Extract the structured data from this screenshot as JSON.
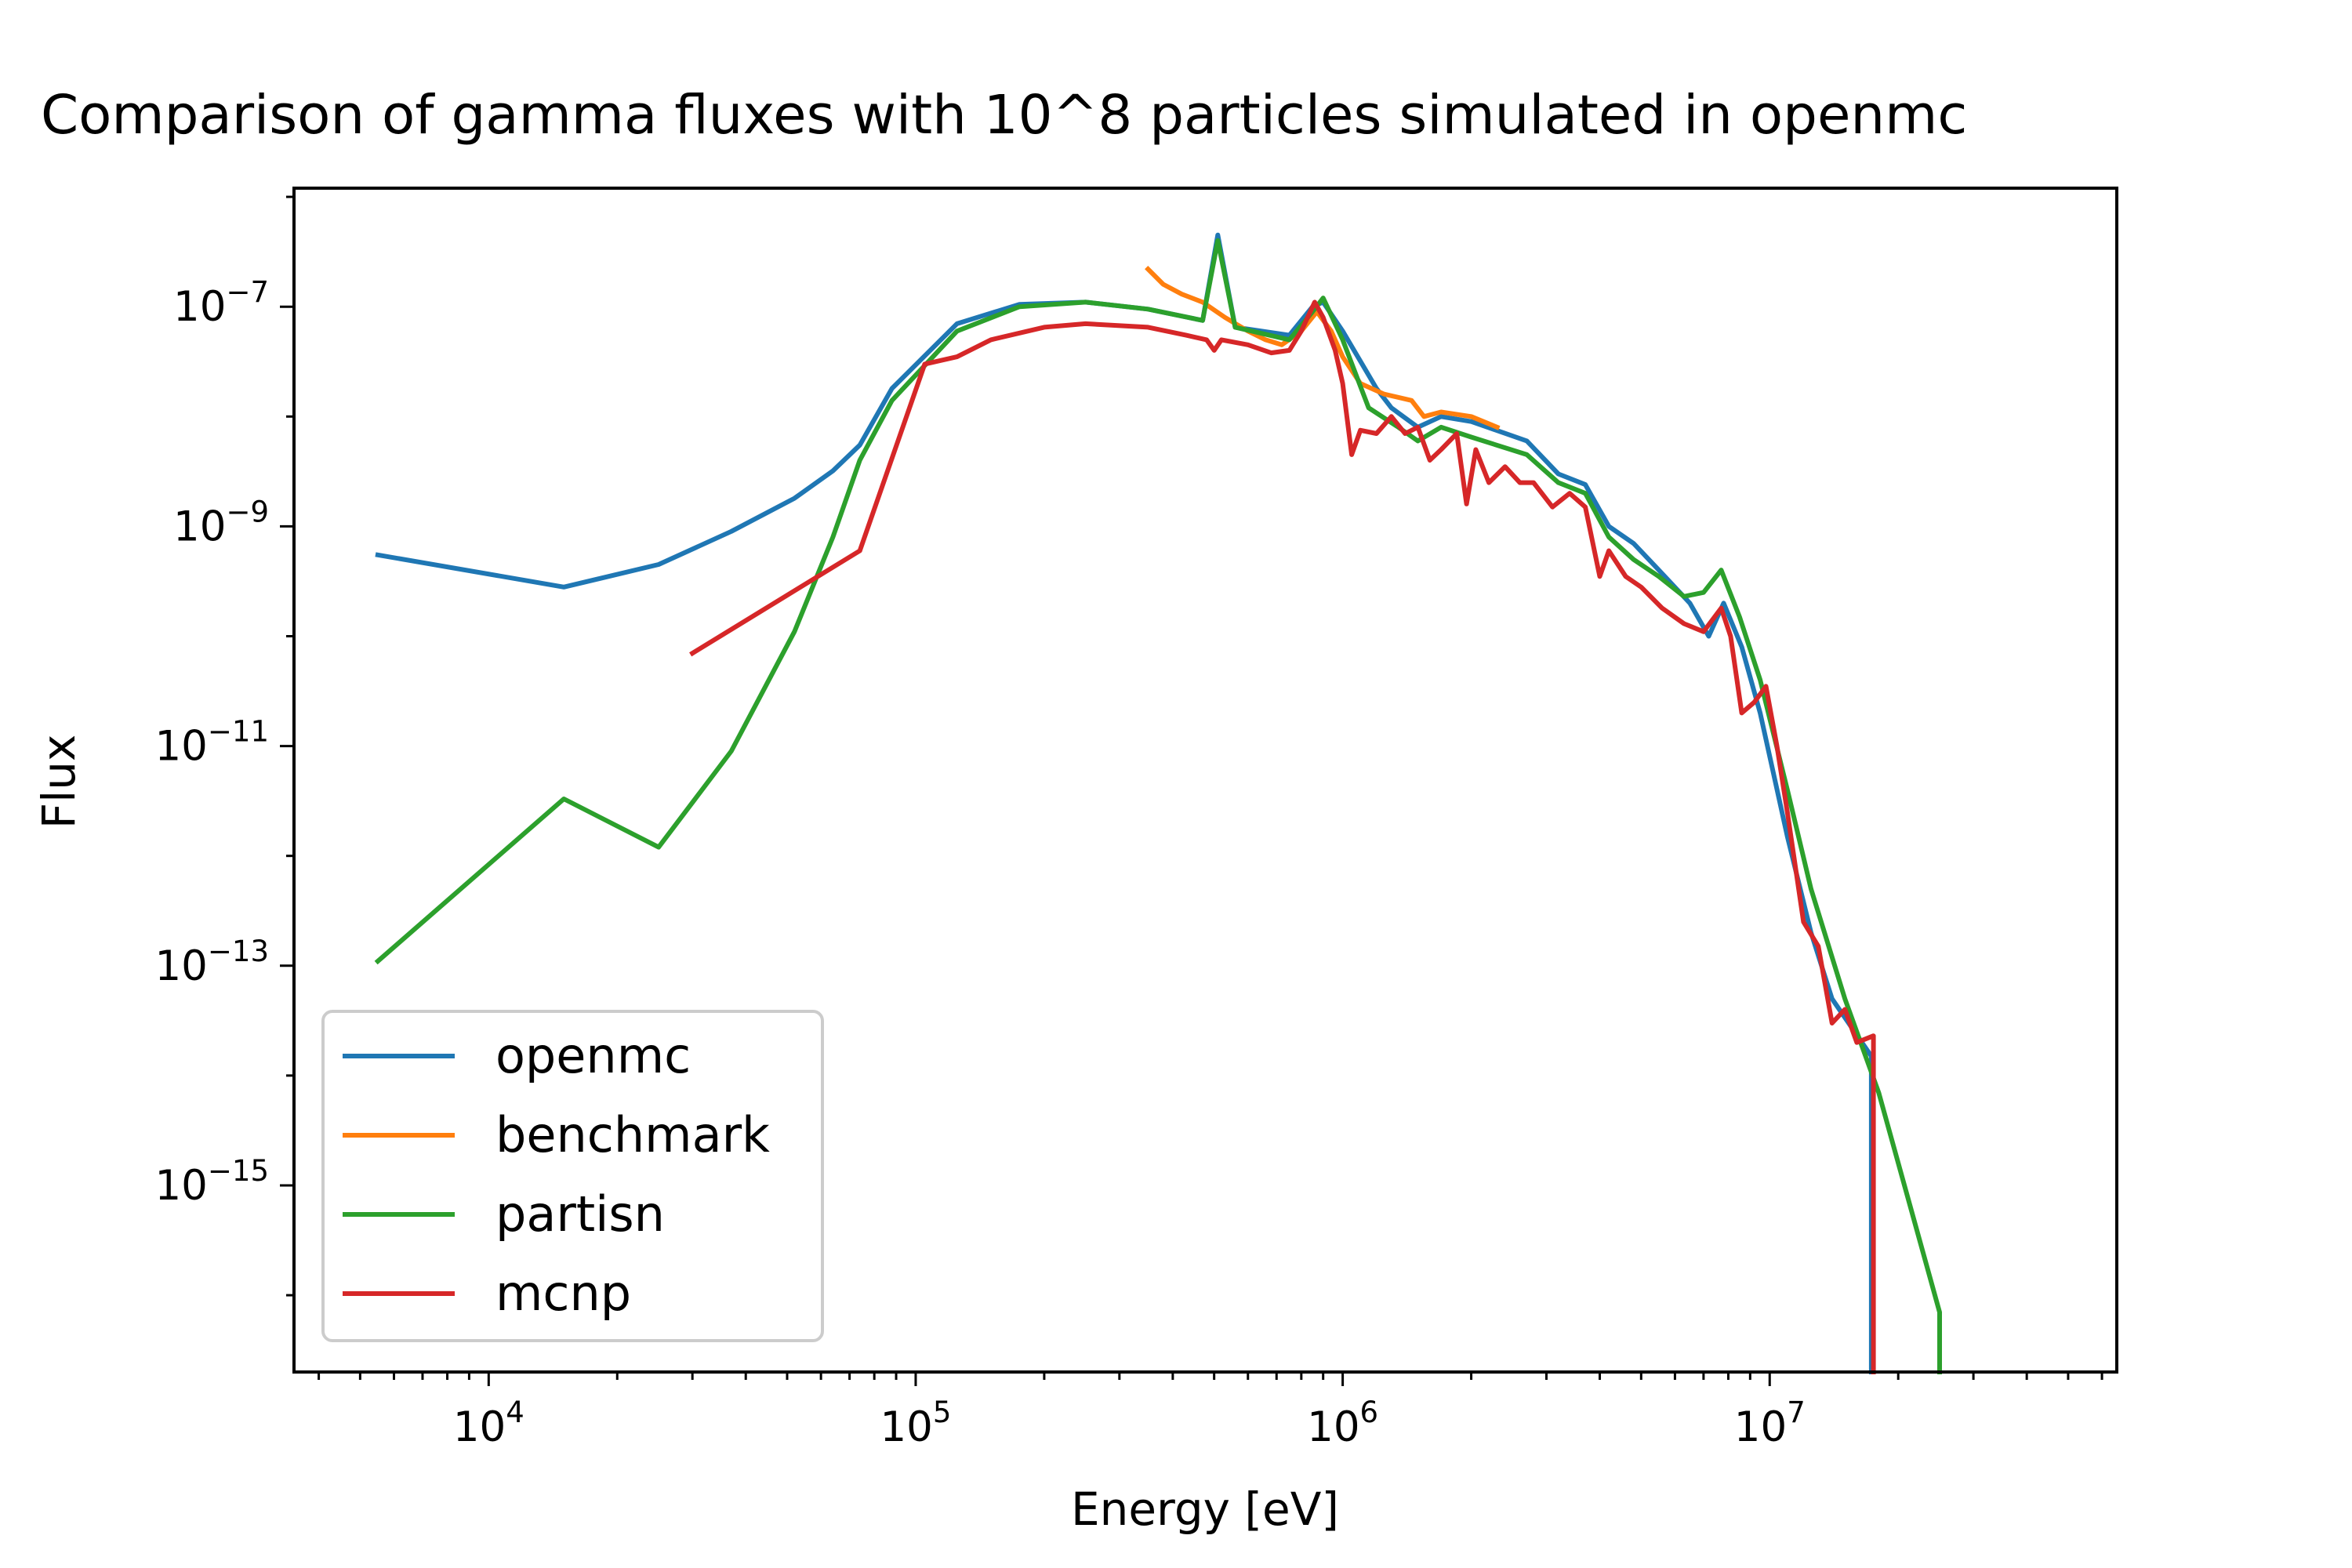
{
  "chart_data": {
    "type": "line",
    "title": "Comparison of gamma fluxes with 10^8 particles simulated in openmc",
    "xlabel": "Energy [eV]",
    "ylabel": "Flux",
    "xscale": "log",
    "yscale": "log",
    "xlim": [
      3500,
      65000000
    ],
    "ylim": [
      2e-17,
      1.2e-06
    ],
    "x_ticks": [
      {
        "value": 10000,
        "base": "10",
        "exp": "4"
      },
      {
        "value": 100000,
        "base": "10",
        "exp": "5"
      },
      {
        "value": 1000000,
        "base": "10",
        "exp": "6"
      },
      {
        "value": 10000000,
        "base": "10",
        "exp": "7"
      }
    ],
    "y_ticks": [
      {
        "value": 1e-07,
        "base": "10",
        "exp": "−7"
      },
      {
        "value": 1e-09,
        "base": "10",
        "exp": "−9"
      },
      {
        "value": 1e-11,
        "base": "10",
        "exp": "−11"
      },
      {
        "value": 1e-13,
        "base": "10",
        "exp": "−13"
      },
      {
        "value": 1e-15,
        "base": "10",
        "exp": "−15"
      }
    ],
    "grid": false,
    "legend_position": "lower-left",
    "series": [
      {
        "name": "openmc",
        "color": "#1f77b4",
        "points": [
          [
            5500,
            5.5e-10
          ],
          [
            15000,
            2.8e-10
          ],
          [
            25000,
            4.5e-10
          ],
          [
            37000,
            9e-10
          ],
          [
            52000,
            1.8e-09
          ],
          [
            64000,
            3.2e-09
          ],
          [
            74000,
            5.5e-09
          ],
          [
            88000,
            1.8e-08
          ],
          [
            125000,
            7e-08
          ],
          [
            175000,
            1.05e-07
          ],
          [
            250000,
            1.1e-07
          ],
          [
            350000,
            9.5e-08
          ],
          [
            470000,
            7.5e-08
          ],
          [
            510000,
            4.5e-07
          ],
          [
            560000,
            6.5e-08
          ],
          [
            750000,
            5.5e-08
          ],
          [
            850000,
            1e-07
          ],
          [
            900000,
            1.1e-07
          ],
          [
            1000000,
            6e-08
          ],
          [
            1200000,
            1.8e-08
          ],
          [
            1300000,
            1.2e-08
          ],
          [
            1500000,
            8e-09
          ],
          [
            1700000,
            1e-08
          ],
          [
            2000000,
            9e-09
          ],
          [
            2700000,
            6e-09
          ],
          [
            3200000,
            3e-09
          ],
          [
            3700000,
            2.4e-09
          ],
          [
            4200000,
            1e-09
          ],
          [
            4800000,
            7e-10
          ],
          [
            5500000,
            4e-10
          ],
          [
            6500000,
            2e-10
          ],
          [
            7200000,
            1e-10
          ],
          [
            7800000,
            2e-10
          ],
          [
            8600000,
            8e-11
          ],
          [
            9500000,
            2e-11
          ],
          [
            11000000,
            1.5e-12
          ],
          [
            12500000,
            2e-13
          ],
          [
            14000000,
            5e-14
          ],
          [
            17300000,
            1.5e-14
          ],
          [
            17300000,
            2e-17
          ]
        ]
      },
      {
        "name": "benchmark",
        "color": "#ff7f0e",
        "points": [
          [
            350000,
            2.2e-07
          ],
          [
            380000,
            1.6e-07
          ],
          [
            420000,
            1.3e-07
          ],
          [
            470000,
            1.1e-07
          ],
          [
            530000,
            8e-08
          ],
          [
            600000,
            6e-08
          ],
          [
            660000,
            5e-08
          ],
          [
            720000,
            4.5e-08
          ],
          [
            800000,
            6e-08
          ],
          [
            870000,
            9e-08
          ],
          [
            940000,
            6e-08
          ],
          [
            1000000,
            3.5e-08
          ],
          [
            1100000,
            2e-08
          ],
          [
            1250000,
            1.6e-08
          ],
          [
            1450000,
            1.4e-08
          ],
          [
            1550000,
            1e-08
          ],
          [
            1700000,
            1.1e-08
          ],
          [
            2000000,
            1e-08
          ],
          [
            2300000,
            8e-09
          ]
        ]
      },
      {
        "name": "partisn",
        "color": "#2ca02c",
        "points": [
          [
            5500,
            1.1e-13
          ],
          [
            15000,
            3.3e-12
          ],
          [
            25000,
            1.2e-12
          ],
          [
            37000,
            9e-12
          ],
          [
            52000,
            1.1e-10
          ],
          [
            64000,
            8e-10
          ],
          [
            74000,
            4e-09
          ],
          [
            88000,
            1.4e-08
          ],
          [
            125000,
            6e-08
          ],
          [
            175000,
            1e-07
          ],
          [
            250000,
            1.1e-07
          ],
          [
            350000,
            9.5e-08
          ],
          [
            470000,
            7.5e-08
          ],
          [
            510000,
            4e-07
          ],
          [
            560000,
            6.5e-08
          ],
          [
            750000,
            5e-08
          ],
          [
            850000,
            9e-08
          ],
          [
            900000,
            1.2e-07
          ],
          [
            1000000,
            5e-08
          ],
          [
            1150000,
            1.2e-08
          ],
          [
            1350000,
            8e-09
          ],
          [
            1500000,
            6e-09
          ],
          [
            1700000,
            8e-09
          ],
          [
            2000000,
            6.5e-09
          ],
          [
            2700000,
            4.5e-09
          ],
          [
            3200000,
            2.5e-09
          ],
          [
            3700000,
            2e-09
          ],
          [
            4200000,
            8e-10
          ],
          [
            4800000,
            5e-10
          ],
          [
            5500000,
            3.5e-10
          ],
          [
            6300000,
            2.3e-10
          ],
          [
            7000000,
            2.5e-10
          ],
          [
            7700000,
            4e-10
          ],
          [
            8500000,
            1.5e-10
          ],
          [
            9500000,
            4e-11
          ],
          [
            11000000,
            4e-12
          ],
          [
            12500000,
            5e-13
          ],
          [
            15000000,
            5e-14
          ],
          [
            18000000,
            7e-15
          ],
          [
            25000000,
            7e-17
          ],
          [
            25000000,
            2e-17
          ]
        ]
      },
      {
        "name": "mcnp",
        "color": "#d62728",
        "points": [
          [
            30000,
            7e-11
          ],
          [
            74000,
            6e-10
          ],
          [
            105000,
            3e-08
          ],
          [
            125000,
            3.5e-08
          ],
          [
            150000,
            5e-08
          ],
          [
            200000,
            6.5e-08
          ],
          [
            250000,
            7e-08
          ],
          [
            350000,
            6.5e-08
          ],
          [
            430000,
            5.5e-08
          ],
          [
            480000,
            5e-08
          ],
          [
            500000,
            4e-08
          ],
          [
            520000,
            5e-08
          ],
          [
            600000,
            4.5e-08
          ],
          [
            680000,
            3.8e-08
          ],
          [
            750000,
            4e-08
          ],
          [
            800000,
            6e-08
          ],
          [
            860000,
            1.1e-07
          ],
          [
            900000,
            8e-08
          ],
          [
            960000,
            4e-08
          ],
          [
            1000000,
            2e-08
          ],
          [
            1050000,
            4.5e-09
          ],
          [
            1100000,
            7.5e-09
          ],
          [
            1200000,
            7e-09
          ],
          [
            1300000,
            1e-08
          ],
          [
            1400000,
            7e-09
          ],
          [
            1500000,
            8e-09
          ],
          [
            1600000,
            4e-09
          ],
          [
            1700000,
            5e-09
          ],
          [
            1850000,
            7e-09
          ],
          [
            1950000,
            1.6e-09
          ],
          [
            2050000,
            5e-09
          ],
          [
            2200000,
            2.5e-09
          ],
          [
            2400000,
            3.5e-09
          ],
          [
            2600000,
            2.5e-09
          ],
          [
            2800000,
            2.5e-09
          ],
          [
            3100000,
            1.5e-09
          ],
          [
            3400000,
            2e-09
          ],
          [
            3700000,
            1.5e-09
          ],
          [
            4000000,
            3.5e-10
          ],
          [
            4200000,
            6e-10
          ],
          [
            4600000,
            3.5e-10
          ],
          [
            5000000,
            2.8e-10
          ],
          [
            5600000,
            1.8e-10
          ],
          [
            6300000,
            1.3e-10
          ],
          [
            7000000,
            1.1e-10
          ],
          [
            7700000,
            1.8e-10
          ],
          [
            8100000,
            1e-10
          ],
          [
            8600000,
            2e-11
          ],
          [
            9200000,
            2.5e-11
          ],
          [
            9800000,
            3.5e-11
          ],
          [
            10400000,
            1e-11
          ],
          [
            11000000,
            2.5e-12
          ],
          [
            12000000,
            2.5e-13
          ],
          [
            13000000,
            1.5e-13
          ],
          [
            14000000,
            3e-14
          ],
          [
            15000000,
            4e-14
          ],
          [
            16000000,
            2e-14
          ],
          [
            17500000,
            2.3e-14
          ],
          [
            17500000,
            2e-17
          ]
        ]
      }
    ]
  }
}
